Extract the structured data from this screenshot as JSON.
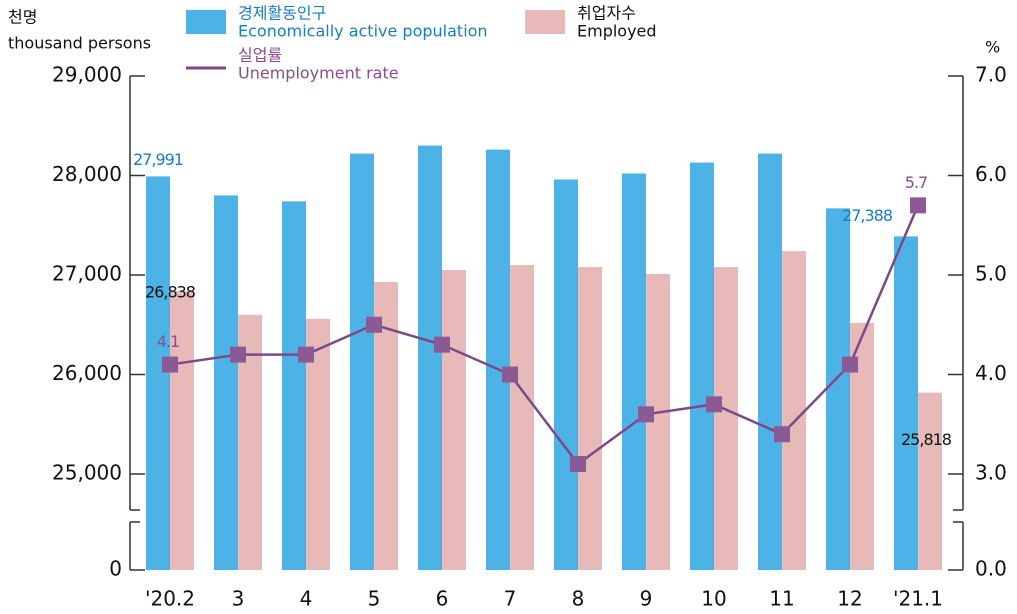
{
  "chart_data": {
    "type": "bar-line",
    "y_label": [
      "천명",
      "thousand persons"
    ],
    "y2_label": "%",
    "categories": [
      "'20.2",
      "3",
      "4",
      "5",
      "6",
      "7",
      "8",
      "9",
      "10",
      "11",
      "12",
      "'21.1"
    ],
    "broken_axis": true,
    "series": [
      {
        "name": [
          "경제활동인구",
          "Economically active population"
        ],
        "type": "bar",
        "color": "#4db3e6",
        "label_color": "#1a7dc0",
        "values": [
          27991,
          27800,
          27740,
          28220,
          28300,
          28260,
          27960,
          28020,
          28130,
          28220,
          27670,
          27388
        ],
        "value_labels": [
          "27,991",
          null,
          null,
          null,
          null,
          null,
          null,
          null,
          null,
          null,
          null,
          "27,388"
        ]
      },
      {
        "name": [
          "취업자수",
          "Employed"
        ],
        "type": "bar",
        "color": "#e8b9b9",
        "label_color": "#111111",
        "values": [
          26838,
          26600,
          26560,
          26930,
          27050,
          27100,
          27080,
          27010,
          27080,
          27240,
          26520,
          25818
        ],
        "value_labels": [
          "26,838",
          null,
          null,
          null,
          null,
          null,
          null,
          null,
          null,
          null,
          null,
          "25,818"
        ]
      },
      {
        "name": [
          "실업률",
          "Unemployment rate"
        ],
        "type": "line",
        "axis": "y2",
        "color": "#7b4a86",
        "label_color": "#8a4d8f",
        "values": [
          4.1,
          4.2,
          4.2,
          4.5,
          4.3,
          4.0,
          3.1,
          3.6,
          3.7,
          3.4,
          4.1,
          5.7
        ],
        "value_labels": [
          "4.1",
          null,
          null,
          null,
          null,
          null,
          null,
          null,
          null,
          null,
          null,
          "5.7"
        ]
      }
    ],
    "ylim": [
      0,
      29000
    ],
    "yticks": [
      0,
      {
        "value": 25000,
        "label": "25,000"
      },
      {
        "value": 26000,
        "label": "26,000"
      },
      {
        "value": 27000,
        "label": "27,000"
      },
      {
        "value": 28000,
        "label": "28,000"
      },
      {
        "value": 29000,
        "label": "29,000"
      }
    ],
    "y2lim": [
      0,
      7
    ],
    "y2ticks": [
      {
        "value": 0,
        "label": "0.0"
      },
      {
        "value": 3,
        "label": "3.0"
      },
      {
        "value": 4,
        "label": "4.0"
      },
      {
        "value": 5,
        "label": "5.0"
      },
      {
        "value": 6,
        "label": "6.0"
      },
      {
        "value": 7,
        "label": "7.0"
      }
    ]
  }
}
